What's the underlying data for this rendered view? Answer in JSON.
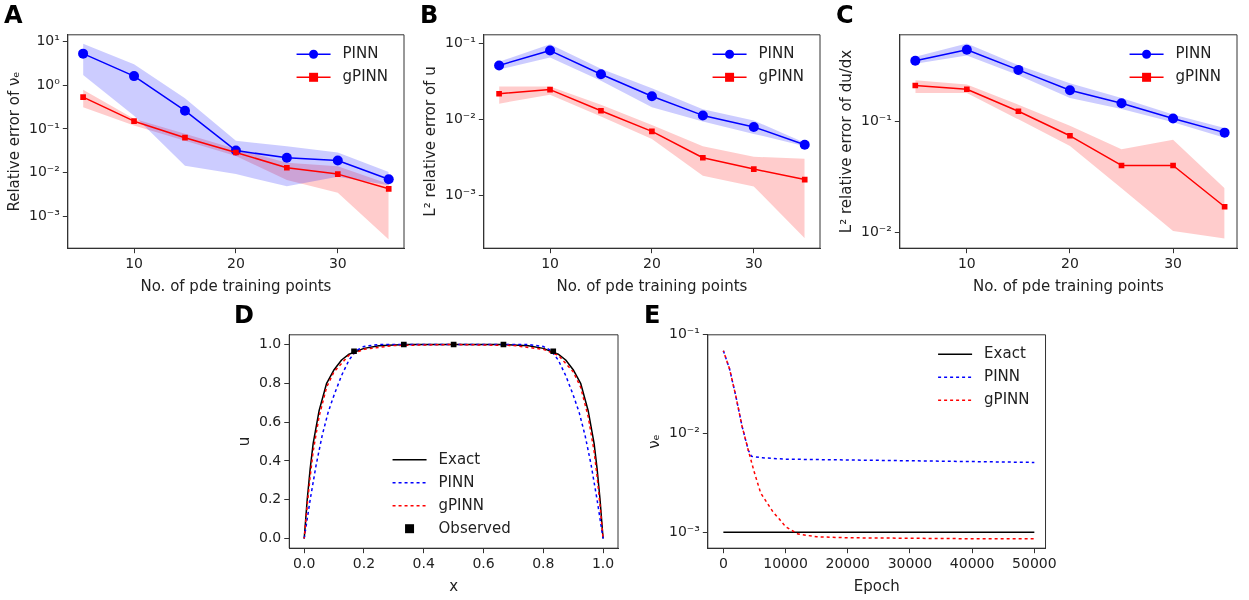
{
  "chart_data": [
    {
      "type": "line",
      "title": "A",
      "xlabel": "No. of pde training points",
      "ylabel": "Relative error of νₑ",
      "log": "y",
      "grid": false,
      "legend": "top right",
      "x": [
        5,
        10,
        15,
        20,
        25,
        30,
        35
      ],
      "xlim": [
        3.5,
        36.5
      ],
      "xticks": [
        10,
        20,
        30
      ],
      "ylim": [
        0.00019,
        14
      ],
      "yticks": [
        {
          "value": 10,
          "label": "10¹"
        },
        {
          "value": 1,
          "label": "10⁰"
        },
        {
          "value": 0.1,
          "label": "10⁻¹"
        },
        {
          "value": 0.01,
          "label": "10⁻²"
        },
        {
          "value": 0.001,
          "label": "10⁻³"
        }
      ],
      "series": [
        {
          "name": "PINN",
          "color": "#0000ff",
          "marker": "circle",
          "values": [
            5.2,
            1.6,
            0.26,
            0.032,
            0.022,
            0.019,
            0.0071
          ],
          "lower": [
            1.7,
            0.2,
            0.0145,
            0.0093,
            0.0049,
            0.0081,
            0.0052
          ],
          "upper": [
            8.8,
            3.0,
            0.5,
            0.054,
            0.04,
            0.029,
            0.0104
          ]
        },
        {
          "name": "gPINN",
          "color": "#ff0000",
          "marker": "square",
          "values": [
            0.53,
            0.15,
            0.063,
            0.029,
            0.013,
            0.0093,
            0.0043
          ],
          "lower": [
            0.31,
            0.12,
            0.054,
            0.024,
            0.0068,
            0.0035,
            0.0003
          ],
          "upper": [
            0.78,
            0.17,
            0.077,
            0.035,
            0.017,
            0.014,
            0.0055
          ]
        }
      ]
    },
    {
      "type": "line",
      "title": "B",
      "xlabel": "No. of pde training points",
      "ylabel": "L² relative error of u",
      "log": "y",
      "grid": false,
      "legend": "top right",
      "x": [
        5,
        10,
        15,
        20,
        25,
        30,
        35
      ],
      "xlim": [
        3.5,
        36.5
      ],
      "xticks": [
        10,
        20,
        30
      ],
      "ylim": [
        0.0002,
        0.129
      ],
      "yticks": [
        {
          "value": 0.1,
          "label": "10⁻¹"
        },
        {
          "value": 0.01,
          "label": "10⁻²"
        },
        {
          "value": 0.001,
          "label": "10⁻³"
        }
      ],
      "series": [
        {
          "name": "PINN",
          "color": "#0000ff",
          "marker": "circle",
          "values": [
            0.051,
            0.08,
            0.039,
            0.02,
            0.0112,
            0.0079,
            0.0046
          ],
          "lower": [
            0.045,
            0.065,
            0.032,
            0.0143,
            0.0093,
            0.0064,
            0.0044
          ],
          "upper": [
            0.057,
            0.097,
            0.046,
            0.0256,
            0.0135,
            0.0096,
            0.0049
          ]
        },
        {
          "name": "gPINN",
          "color": "#ff0000",
          "marker": "square",
          "values": [
            0.0216,
            0.0245,
            0.0129,
            0.0069,
            0.0031,
            0.0022,
            0.0016
          ],
          "lower": [
            0.016,
            0.021,
            0.0108,
            0.0055,
            0.0018,
            0.0013,
            0.00027
          ],
          "upper": [
            0.027,
            0.027,
            0.0155,
            0.0084,
            0.0044,
            0.0032,
            0.003
          ]
        }
      ]
    },
    {
      "type": "line",
      "title": "C",
      "xlabel": "No. of pde training points",
      "ylabel": "L² relative error of du/dx",
      "log": "y",
      "grid": false,
      "legend": "top right",
      "x": [
        5,
        10,
        15,
        20,
        25,
        30,
        35
      ],
      "xlim": [
        3.5,
        36.2
      ],
      "xticks": [
        10,
        20,
        30
      ],
      "ylim": [
        0.0072,
        0.6
      ],
      "yticks": [
        {
          "value": 0.1,
          "label": "10⁻¹"
        },
        {
          "value": 0.01,
          "label": "10⁻²"
        }
      ],
      "series": [
        {
          "name": "PINN",
          "color": "#0000ff",
          "marker": "circle",
          "values": [
            0.35,
            0.44,
            0.29,
            0.19,
            0.145,
            0.106,
            0.079
          ],
          "lower": [
            0.33,
            0.39,
            0.26,
            0.162,
            0.129,
            0.098,
            0.071
          ],
          "upper": [
            0.38,
            0.5,
            0.32,
            0.22,
            0.162,
            0.115,
            0.087
          ]
        },
        {
          "name": "gPINN",
          "color": "#ff0000",
          "marker": "square",
          "values": [
            0.21,
            0.194,
            0.123,
            0.074,
            0.04,
            0.04,
            0.017
          ],
          "lower": [
            0.18,
            0.18,
            0.104,
            0.06,
            0.025,
            0.0103,
            0.0088
          ],
          "upper": [
            0.234,
            0.214,
            0.141,
            0.091,
            0.056,
            0.068,
            0.025
          ]
        }
      ]
    },
    {
      "type": "line",
      "title": "D",
      "xlabel": "x",
      "ylabel": "u",
      "grid": false,
      "legend": "bottom",
      "xlim": [
        -0.05,
        1.05
      ],
      "xticks": [
        {
          "value": 0,
          "label": "0.0"
        },
        {
          "value": 0.2,
          "label": "0.2"
        },
        {
          "value": 0.4,
          "label": "0.4"
        },
        {
          "value": 0.6,
          "label": "0.6"
        },
        {
          "value": 0.8,
          "label": "0.8"
        },
        {
          "value": 1,
          "label": "1.0"
        }
      ],
      "ylim": [
        -0.05,
        1.05
      ],
      "yticks": [
        {
          "value": 0,
          "label": "0.0"
        },
        {
          "value": 0.2,
          "label": "0.2"
        },
        {
          "value": 0.4,
          "label": "0.4"
        },
        {
          "value": 0.6,
          "label": "0.6"
        },
        {
          "value": 0.8,
          "label": "0.8"
        },
        {
          "value": 1,
          "label": "1.0"
        }
      ],
      "series": [
        {
          "name": "Exact",
          "color": "#000000",
          "marker": "none",
          "line_style": "solid",
          "x": [
            0,
            0.01,
            0.02,
            0.03,
            0.05,
            0.075,
            0.1,
            0.125,
            0.15,
            0.2,
            0.25,
            0.3,
            0.35,
            0.5,
            0.65,
            0.7,
            0.75,
            0.8,
            0.85,
            0.875,
            0.9,
            0.925,
            0.95,
            0.97,
            0.98,
            0.99,
            1
          ],
          "values": [
            0,
            0.2,
            0.36,
            0.49,
            0.66,
            0.8,
            0.87,
            0.92,
            0.95,
            0.98,
            0.993,
            0.998,
            1,
            1,
            1,
            0.998,
            0.993,
            0.98,
            0.95,
            0.92,
            0.87,
            0.8,
            0.66,
            0.49,
            0.36,
            0.2,
            0
          ]
        },
        {
          "name": "PINN",
          "color": "#0000ff",
          "marker": "none",
          "line_style": "dashed",
          "x": [
            0,
            0.02,
            0.04,
            0.06,
            0.08,
            0.1,
            0.125,
            0.15,
            0.175,
            0.2,
            0.25,
            0.5,
            0.75,
            0.8,
            0.825,
            0.85,
            0.875,
            0.9,
            0.92,
            0.94,
            0.96,
            0.98,
            1
          ],
          "values": [
            0,
            0.2,
            0.38,
            0.53,
            0.65,
            0.74,
            0.84,
            0.92,
            0.97,
            0.99,
            1,
            1,
            1,
            0.99,
            0.97,
            0.92,
            0.84,
            0.74,
            0.65,
            0.53,
            0.38,
            0.2,
            0
          ]
        },
        {
          "name": "gPINN",
          "color": "#ff0000",
          "marker": "none",
          "line_style": "dashed",
          "x": [
            0,
            0.01,
            0.02,
            0.03,
            0.05,
            0.075,
            0.1,
            0.15,
            0.2,
            0.3,
            0.5,
            0.7,
            0.8,
            0.85,
            0.9,
            0.925,
            0.95,
            0.97,
            0.98,
            0.99,
            1
          ],
          "values": [
            0,
            0.17,
            0.32,
            0.45,
            0.63,
            0.78,
            0.86,
            0.945,
            0.975,
            0.995,
            1,
            0.995,
            0.975,
            0.945,
            0.86,
            0.78,
            0.63,
            0.45,
            0.32,
            0.17,
            0
          ]
        },
        {
          "name": "Observed",
          "type": "scatter",
          "color": "#000000",
          "marker": "square",
          "x": [
            0.1667,
            0.3333,
            0.5,
            0.6667,
            0.8333
          ],
          "values": [
            0.965,
            1.0,
            1.0,
            1.0,
            0.965
          ]
        }
      ]
    },
    {
      "type": "line",
      "title": "E",
      "xlabel": "Epoch",
      "ylabel": "νₑ",
      "log": "y",
      "grid": false,
      "legend": "top right",
      "xlim": [
        -2500,
        51800
      ],
      "xticks": [
        0,
        10000,
        20000,
        30000,
        40000,
        50000
      ],
      "ylim": [
        0.00069,
        0.1
      ],
      "yticks": [
        {
          "value": 0.1,
          "label": "10⁻¹"
        },
        {
          "value": 0.01,
          "label": "10⁻²"
        },
        {
          "value": 0.001,
          "label": "10⁻³"
        }
      ],
      "series": [
        {
          "name": "Exact",
          "color": "#000000",
          "marker": "none",
          "line_style": "solid",
          "x": [
            0,
            50000
          ],
          "values": [
            0.001,
            0.001
          ]
        },
        {
          "name": "PINN",
          "color": "#0000ff",
          "marker": "none",
          "line_style": "dashed",
          "x": [
            0,
            1000,
            2000,
            3000,
            4000,
            4500,
            6000,
            10000,
            20000,
            30000,
            40000,
            50000
          ],
          "values": [
            0.069,
            0.045,
            0.024,
            0.0119,
            0.0068,
            0.0059,
            0.0057,
            0.0055,
            0.0054,
            0.0053,
            0.0052,
            0.0051
          ]
        },
        {
          "name": "gPINN",
          "color": "#ff0000",
          "marker": "none",
          "line_style": "dashed",
          "x": [
            0,
            1000,
            2000,
            3000,
            4000,
            5000,
            6000,
            7000,
            8000,
            9000,
            10000,
            12000,
            15000,
            20000,
            30000,
            40000,
            50000
          ],
          "values": [
            0.069,
            0.045,
            0.024,
            0.0119,
            0.0068,
            0.004,
            0.0025,
            0.002,
            0.0016,
            0.00136,
            0.00114,
            0.00096,
            0.0009,
            0.00088,
            0.00087,
            0.00086,
            0.00086
          ]
        }
      ]
    }
  ]
}
